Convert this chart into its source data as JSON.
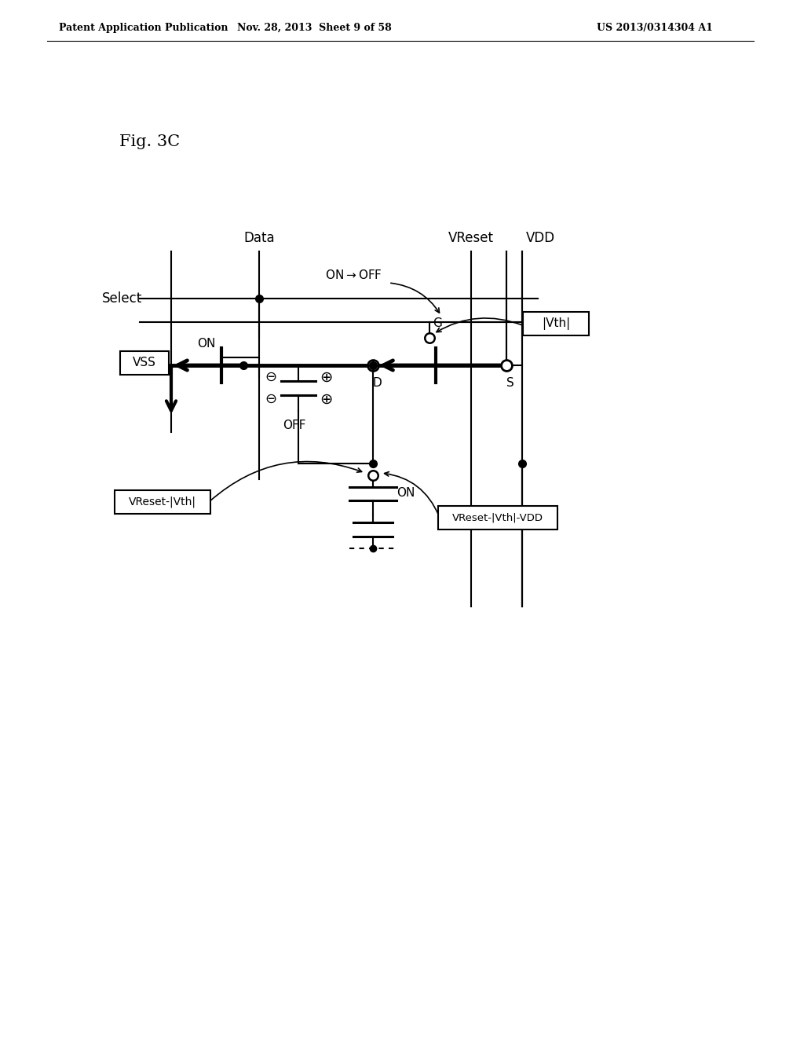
{
  "header_left": "Patent Application Publication",
  "header_mid": "Nov. 28, 2013  Sheet 9 of 58",
  "header_right": "US 2013/0314304 A1",
  "fig_label": "Fig. 3C",
  "bg_color": "#ffffff",
  "line_color": "#000000"
}
